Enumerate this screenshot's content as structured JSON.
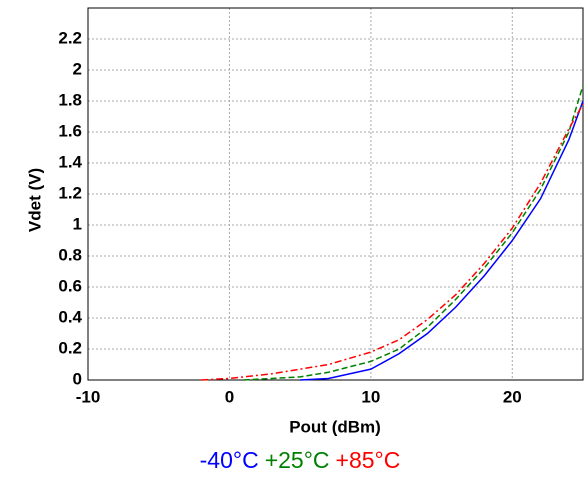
{
  "chart_data": {
    "type": "line",
    "x_label": "Pout (dBm)",
    "y_label": "Vdet (V)",
    "xlim": [
      -10,
      25
    ],
    "xticks": [
      -10,
      0,
      10,
      20
    ],
    "ylim": [
      0,
      2.4
    ],
    "yticks": [
      0,
      0.2,
      0.4,
      0.6,
      0.8,
      1,
      1.2,
      1.4,
      1.6,
      1.8,
      2,
      2.2
    ],
    "grid": true,
    "series": [
      {
        "name": "-40°C",
        "color": "#0000ff",
        "dash": "solid",
        "x": [
          5,
          7,
          10,
          12,
          14,
          16,
          18,
          20,
          22,
          24,
          25
        ],
        "values": [
          0,
          0.01,
          0.07,
          0.17,
          0.3,
          0.47,
          0.67,
          0.9,
          1.17,
          1.55,
          1.8
        ]
      },
      {
        "name": "+25°C",
        "color": "#008000",
        "dash": "dashed",
        "x": [
          1,
          5,
          7,
          10,
          12,
          14,
          16,
          18,
          20,
          22,
          24,
          25
        ],
        "values": [
          0,
          0.02,
          0.05,
          0.12,
          0.2,
          0.34,
          0.52,
          0.72,
          0.95,
          1.23,
          1.6,
          1.9
        ]
      },
      {
        "name": "+85°C",
        "color": "#ff0000",
        "dash": "dashdot",
        "x": [
          -2,
          0,
          3,
          5,
          7,
          10,
          12,
          14,
          16,
          18,
          20,
          22,
          24,
          25
        ],
        "values": [
          0,
          0.01,
          0.04,
          0.07,
          0.1,
          0.18,
          0.26,
          0.39,
          0.55,
          0.75,
          0.98,
          1.27,
          1.62,
          1.78
        ]
      }
    ]
  }
}
